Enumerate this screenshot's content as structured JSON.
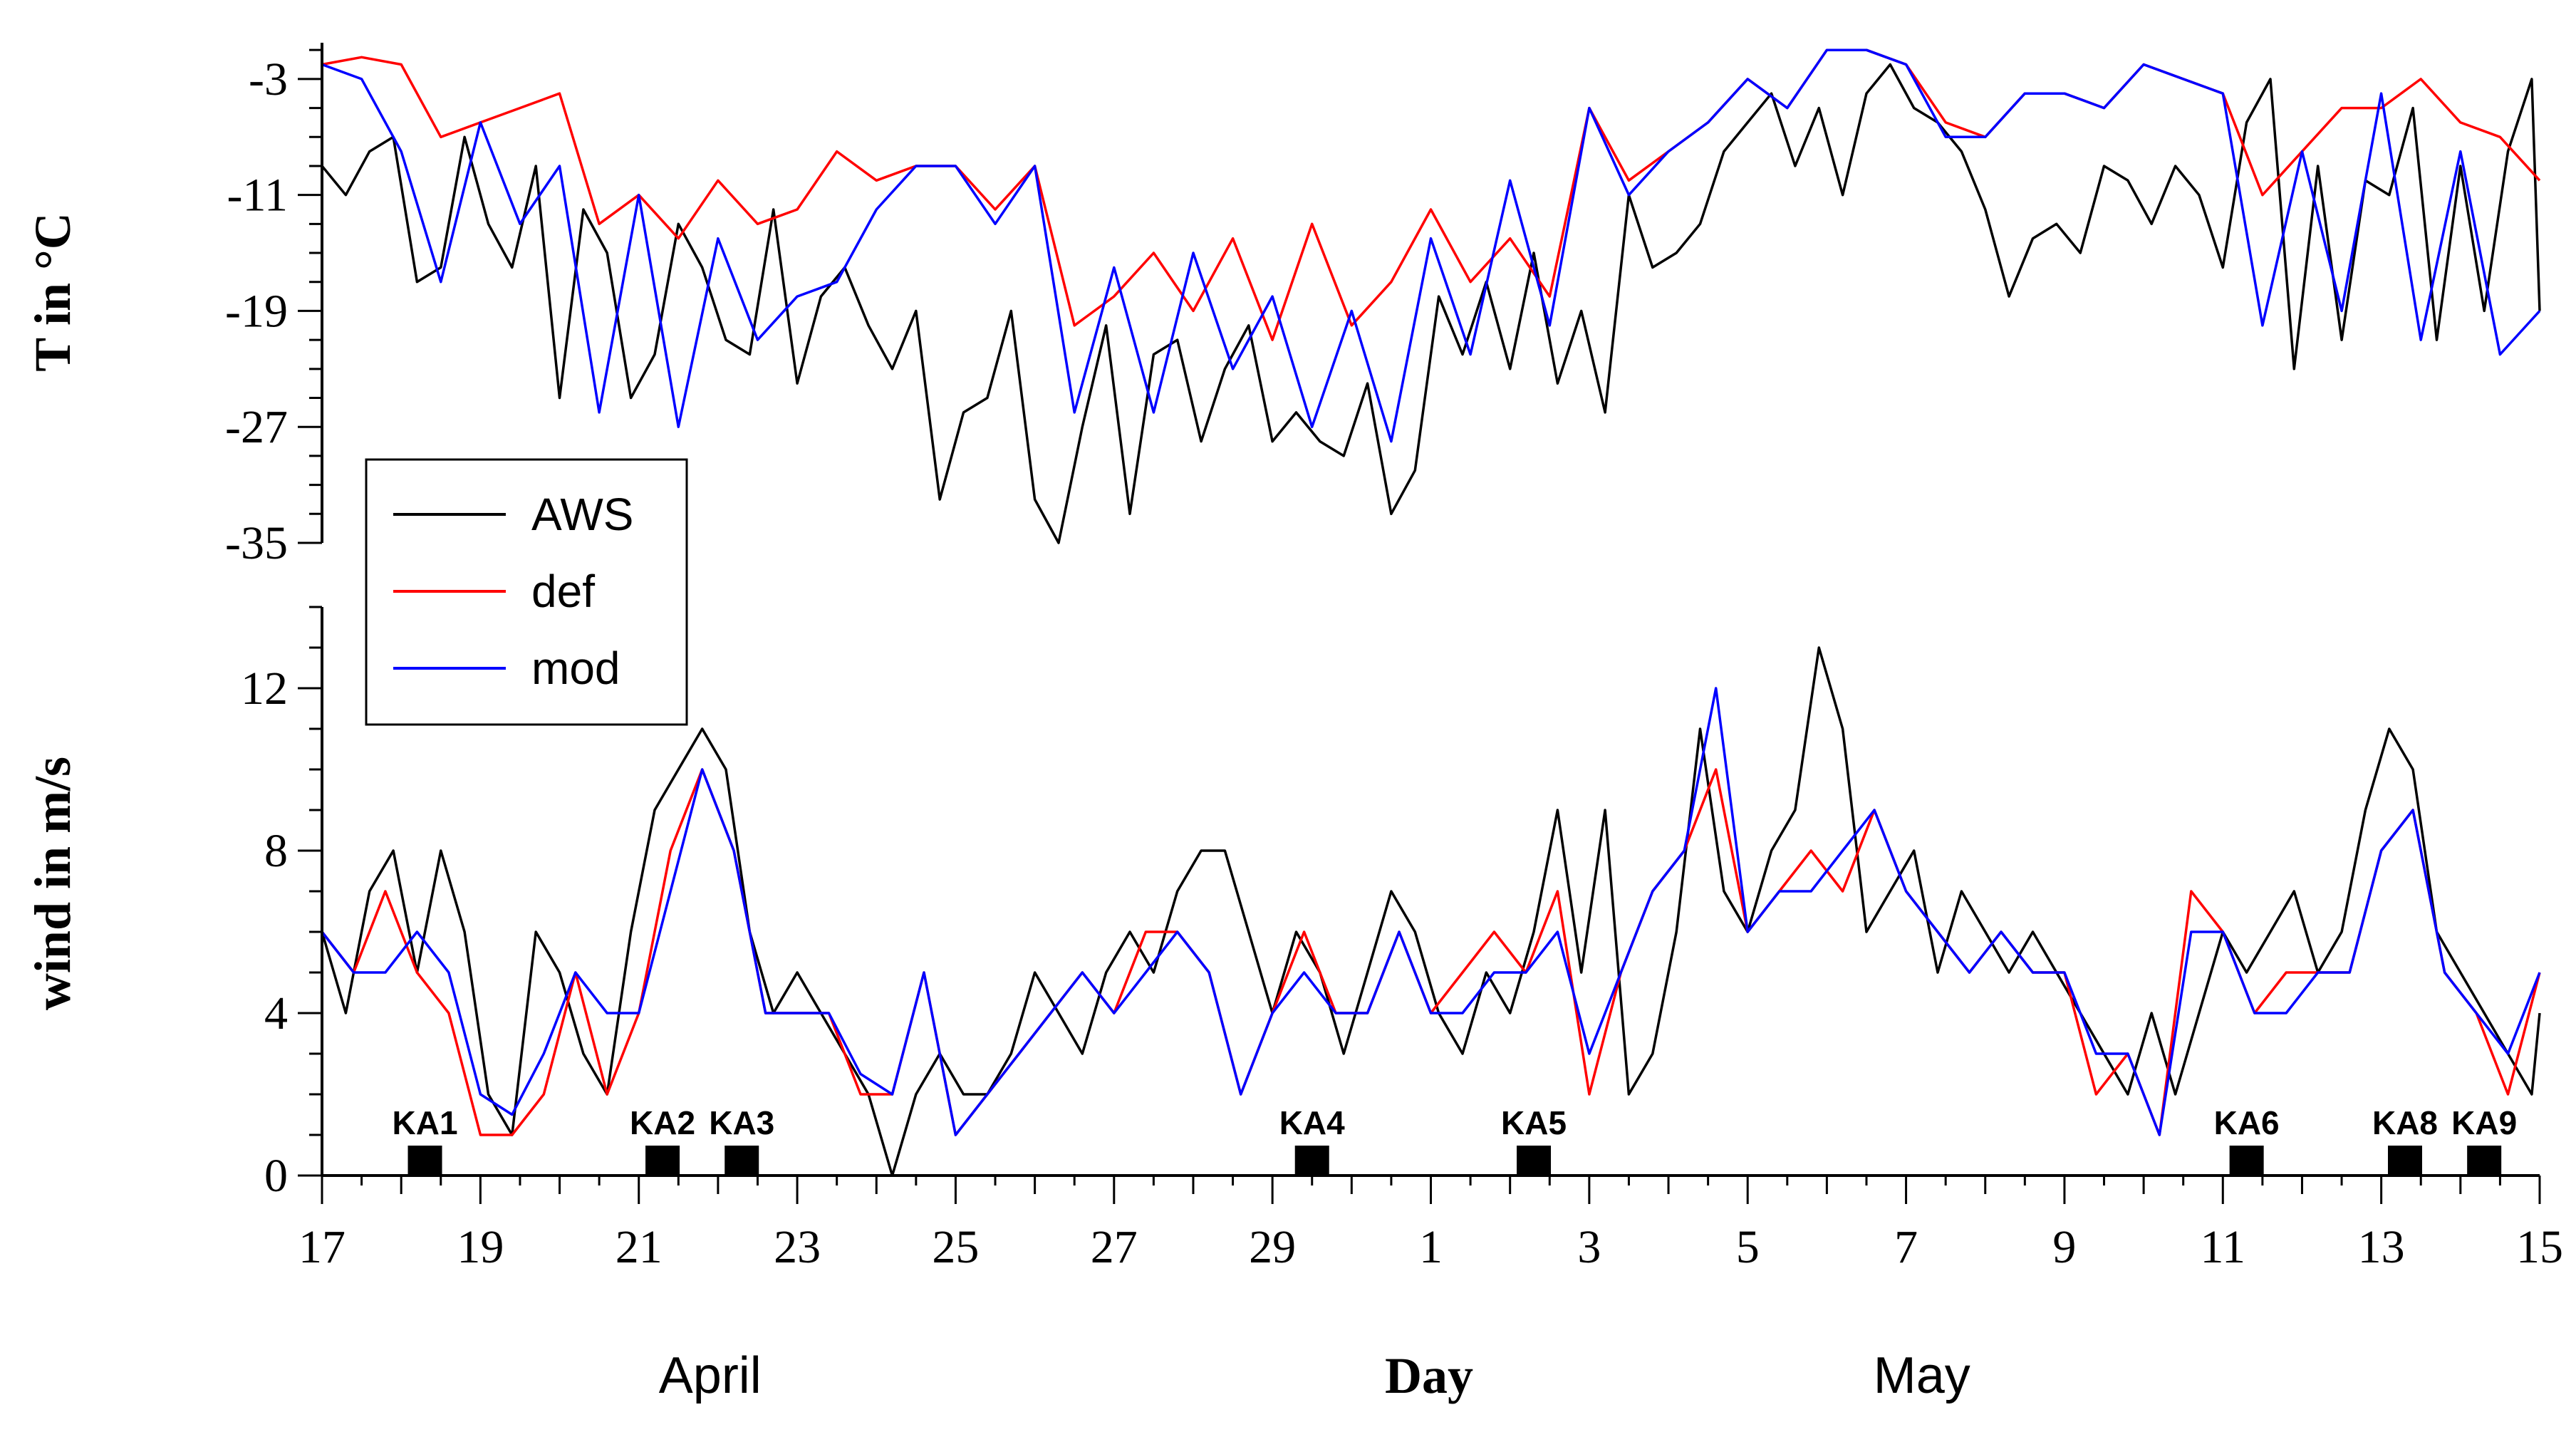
{
  "chart_data": {
    "type": "line",
    "xlabel": "Day",
    "x_unit": "days since 17 April",
    "xlim": [
      0,
      28
    ],
    "x_ticks": [
      {
        "x": 0,
        "label": "17"
      },
      {
        "x": 2,
        "label": "19"
      },
      {
        "x": 4,
        "label": "21"
      },
      {
        "x": 6,
        "label": "23"
      },
      {
        "x": 8,
        "label": "25"
      },
      {
        "x": 10,
        "label": "27"
      },
      {
        "x": 12,
        "label": "29"
      },
      {
        "x": 14,
        "label": "1"
      },
      {
        "x": 16,
        "label": "3"
      },
      {
        "x": 18,
        "label": "5"
      },
      {
        "x": 20,
        "label": "7"
      },
      {
        "x": 22,
        "label": "9"
      },
      {
        "x": 24,
        "label": "11"
      },
      {
        "x": 26,
        "label": "13"
      },
      {
        "x": 28,
        "label": "15"
      }
    ],
    "months": [
      {
        "label": "April",
        "x": 4.9
      },
      {
        "label": "May",
        "x": 20.2
      }
    ],
    "legend": [
      "AWS",
      "def",
      "mod"
    ],
    "colors": {
      "AWS": "#000000",
      "def": "#ff0000",
      "mod": "#0000ff"
    },
    "panels": [
      {
        "name": "temperature",
        "ylabel": "T  in °C",
        "ylim": [
          -35,
          -0.5
        ],
        "yticks": [
          -35,
          -27,
          -19,
          -11,
          -3
        ],
        "series": [
          {
            "name": "AWS",
            "x": [
              0,
              0.3,
              0.6,
              0.9,
              1.2,
              1.5,
              1.8,
              2.1,
              2.4,
              2.7,
              3.0,
              3.3,
              3.6,
              3.9,
              4.2,
              4.5,
              4.8,
              5.1,
              5.4,
              5.7,
              6.0,
              6.3,
              6.6,
              6.9,
              7.2,
              7.5,
              7.8,
              8.1,
              8.4,
              8.7,
              9.0,
              9.3,
              9.6,
              9.9,
              10.2,
              10.5,
              10.8,
              11.1,
              11.4,
              11.7,
              12.0,
              12.3,
              12.6,
              12.9,
              13.2,
              13.5,
              13.8,
              14.1,
              14.4,
              14.7,
              15.0,
              15.3,
              15.6,
              15.9,
              16.2,
              16.5,
              16.8,
              17.1,
              17.4,
              17.7,
              18.0,
              18.3,
              18.6,
              18.9,
              19.2,
              19.5,
              19.8,
              20.1,
              20.4,
              20.7,
              21.0,
              21.3,
              21.6,
              21.9,
              22.2,
              22.5,
              22.8,
              23.1,
              23.4,
              23.7,
              24.0,
              24.3,
              24.6,
              24.9,
              25.2,
              25.5,
              25.8,
              26.1,
              26.4,
              26.7,
              27.0,
              27.3,
              27.6,
              27.9,
              28.0
            ],
            "y": [
              -9,
              -11,
              -8,
              -7,
              -17,
              -16,
              -7,
              -13,
              -16,
              -9,
              -25,
              -12,
              -15,
              -25,
              -22,
              -13,
              -16,
              -21,
              -22,
              -12,
              -24,
              -18,
              -16,
              -20,
              -23,
              -19,
              -32,
              -26,
              -25,
              -19,
              -32,
              -35,
              -27,
              -20,
              -33,
              -22,
              -21,
              -28,
              -23,
              -20,
              -28,
              -26,
              -28,
              -29,
              -24,
              -33,
              -30,
              -18,
              -22,
              -17,
              -23,
              -15,
              -24,
              -19,
              -26,
              -11,
              -16,
              -15,
              -13,
              -8,
              -6,
              -4,
              -9,
              -5,
              -11,
              -4,
              -2,
              -5,
              -6,
              -8,
              -12,
              -18,
              -14,
              -13,
              -15,
              -9,
              -10,
              -13,
              -9,
              -11,
              -16,
              -6,
              -3,
              -23,
              -9,
              -21,
              -10,
              -11,
              -5,
              -21,
              -9,
              -19,
              -8,
              -3,
              -19
            ]
          },
          {
            "name": "def",
            "x": [
              0,
              0.5,
              1.0,
              1.5,
              2.0,
              2.5,
              3.0,
              3.5,
              4.0,
              4.5,
              5.0,
              5.5,
              6.0,
              6.5,
              7.0,
              7.5,
              8.0,
              8.5,
              9.0,
              9.5,
              10.0,
              10.5,
              11.0,
              11.5,
              12.0,
              12.5,
              13.0,
              13.5,
              14.0,
              14.5,
              15.0,
              15.5,
              16.0,
              16.5,
              17.0,
              17.5,
              18.0,
              18.5,
              19.0,
              19.5,
              20.0,
              20.5,
              21.0,
              21.5,
              22.0,
              22.5,
              23.0,
              23.5,
              24.0,
              24.5,
              25.0,
              25.5,
              26.0,
              26.5,
              27.0,
              27.5,
              28.0
            ],
            "y": [
              -2,
              -1.5,
              -2,
              -7,
              -6,
              -5,
              -4,
              -13,
              -11,
              -14,
              -10,
              -13,
              -12,
              -8,
              -10,
              -9,
              -9,
              -12,
              -9,
              -20,
              -18,
              -15,
              -19,
              -14,
              -21,
              -13,
              -20,
              -17,
              -12,
              -17,
              -14,
              -18,
              -5,
              -10,
              -8,
              -6,
              -3,
              -5,
              -1,
              -1,
              -2,
              -6,
              -7,
              -4,
              -4,
              -5,
              -2,
              -3,
              -4,
              -11,
              -8,
              -5,
              -5,
              -3,
              -6,
              -7,
              -10
            ]
          },
          {
            "name": "mod",
            "x": [
              0,
              0.5,
              1.0,
              1.5,
              2.0,
              2.5,
              3.0,
              3.5,
              4.0,
              4.5,
              5.0,
              5.5,
              6.0,
              6.5,
              7.0,
              7.5,
              8.0,
              8.5,
              9.0,
              9.5,
              10.0,
              10.5,
              11.0,
              11.5,
              12.0,
              12.5,
              13.0,
              13.5,
              14.0,
              14.5,
              15.0,
              15.5,
              16.0,
              16.5,
              17.0,
              17.5,
              18.0,
              18.5,
              19.0,
              19.5,
              20.0,
              20.5,
              21.0,
              21.5,
              22.0,
              22.5,
              23.0,
              23.5,
              24.0,
              24.5,
              25.0,
              25.5,
              26.0,
              26.5,
              27.0,
              27.5,
              28.0
            ],
            "y": [
              -2,
              -3,
              -8,
              -17,
              -6,
              -13,
              -9,
              -26,
              -11,
              -27,
              -14,
              -21,
              -18,
              -17,
              -12,
              -9,
              -9,
              -13,
              -9,
              -26,
              -16,
              -26,
              -15,
              -23,
              -18,
              -27,
              -19,
              -28,
              -14,
              -22,
              -10,
              -20,
              -5,
              -11,
              -8,
              -6,
              -3,
              -5,
              -1,
              -1,
              -2,
              -7,
              -7,
              -4,
              -4,
              -5,
              -2,
              -3,
              -4,
              -20,
              -8,
              -19,
              -4,
              -21,
              -8,
              -22,
              -19
            ]
          }
        ]
      },
      {
        "name": "wind",
        "ylabel": "wind in m/s",
        "ylim": [
          0,
          14
        ],
        "yticks": [
          0,
          4,
          8,
          12
        ],
        "series": [
          {
            "name": "AWS",
            "x": [
              0,
              0.3,
              0.6,
              0.9,
              1.2,
              1.5,
              1.8,
              2.1,
              2.4,
              2.7,
              3.0,
              3.3,
              3.6,
              3.9,
              4.2,
              4.5,
              4.8,
              5.1,
              5.4,
              5.7,
              6.0,
              6.3,
              6.6,
              6.9,
              7.2,
              7.5,
              7.8,
              8.1,
              8.4,
              8.7,
              9.0,
              9.3,
              9.6,
              9.9,
              10.2,
              10.5,
              10.8,
              11.1,
              11.4,
              11.7,
              12.0,
              12.3,
              12.6,
              12.9,
              13.2,
              13.5,
              13.8,
              14.1,
              14.4,
              14.7,
              15.0,
              15.3,
              15.6,
              15.9,
              16.2,
              16.5,
              16.8,
              17.1,
              17.4,
              17.7,
              18.0,
              18.3,
              18.6,
              18.9,
              19.2,
              19.5,
              19.8,
              20.1,
              20.4,
              20.7,
              21.0,
              21.3,
              21.6,
              21.9,
              22.2,
              22.5,
              22.8,
              23.1,
              23.4,
              23.7,
              24.0,
              24.3,
              24.6,
              24.9,
              25.2,
              25.5,
              25.8,
              26.1,
              26.4,
              26.7,
              27.0,
              27.3,
              27.6,
              27.9,
              28.0
            ],
            "y": [
              6,
              4,
              7,
              8,
              5,
              8,
              6,
              2,
              1,
              6,
              5,
              3,
              2,
              6,
              9,
              10,
              11,
              10,
              6,
              4,
              5,
              4,
              3,
              2,
              0,
              2,
              3,
              2,
              2,
              3,
              5,
              4,
              3,
              5,
              6,
              5,
              7,
              8,
              8,
              6,
              4,
              6,
              5,
              3,
              5,
              7,
              6,
              4,
              3,
              5,
              4,
              6,
              9,
              5,
              9,
              2,
              3,
              6,
              11,
              7,
              6,
              8,
              9,
              13,
              11,
              6,
              7,
              8,
              5,
              7,
              6,
              5,
              6,
              5,
              4,
              3,
              2,
              4,
              2,
              4,
              6,
              5,
              6,
              7,
              5,
              6,
              9,
              11,
              10,
              6,
              5,
              4,
              3,
              2,
              4
            ]
          },
          {
            "name": "def",
            "x": [
              0,
              0.4,
              0.8,
              1.2,
              1.6,
              2.0,
              2.4,
              2.8,
              3.2,
              3.6,
              4.0,
              4.4,
              4.8,
              5.2,
              5.6,
              6.0,
              6.4,
              6.8,
              7.2,
              7.6,
              8.0,
              8.4,
              8.8,
              9.2,
              9.6,
              10.0,
              10.4,
              10.8,
              11.2,
              11.6,
              12.0,
              12.4,
              12.8,
              13.2,
              13.6,
              14.0,
              14.4,
              14.8,
              15.2,
              15.6,
              16.0,
              16.4,
              16.8,
              17.2,
              17.6,
              18.0,
              18.4,
              18.8,
              19.2,
              19.6,
              20.0,
              20.4,
              20.8,
              21.2,
              21.6,
              22.0,
              22.4,
              22.8,
              23.2,
              23.6,
              24.0,
              24.4,
              24.8,
              25.2,
              25.6,
              26.0,
              26.4,
              26.8,
              27.2,
              27.6,
              28.0
            ],
            "y": [
              6,
              5,
              7,
              5,
              4,
              1,
              1,
              2,
              5,
              2,
              4,
              8,
              10,
              8,
              4,
              4,
              4,
              2,
              2,
              5,
              1,
              2,
              3,
              4,
              5,
              4,
              6,
              6,
              5,
              2,
              4,
              6,
              4,
              4,
              6,
              4,
              5,
              6,
              5,
              7,
              2,
              5,
              7,
              8,
              10,
              6,
              7,
              8,
              7,
              9,
              7,
              6,
              5,
              6,
              5,
              5,
              2,
              3,
              1,
              7,
              6,
              4,
              5,
              5,
              5,
              8,
              9,
              5,
              4,
              2,
              5
            ]
          },
          {
            "name": "mod",
            "x": [
              0,
              0.4,
              0.8,
              1.2,
              1.6,
              2.0,
              2.4,
              2.8,
              3.2,
              3.6,
              4.0,
              4.4,
              4.8,
              5.2,
              5.6,
              6.0,
              6.4,
              6.8,
              7.2,
              7.6,
              8.0,
              8.4,
              8.8,
              9.2,
              9.6,
              10.0,
              10.4,
              10.8,
              11.2,
              11.6,
              12.0,
              12.4,
              12.8,
              13.2,
              13.6,
              14.0,
              14.4,
              14.8,
              15.2,
              15.6,
              16.0,
              16.4,
              16.8,
              17.2,
              17.6,
              18.0,
              18.4,
              18.8,
              19.2,
              19.6,
              20.0,
              20.4,
              20.8,
              21.2,
              21.6,
              22.0,
              22.4,
              22.8,
              23.2,
              23.6,
              24.0,
              24.4,
              24.8,
              25.2,
              25.6,
              26.0,
              26.4,
              26.8,
              27.2,
              27.6,
              28.0
            ],
            "y": [
              6,
              5,
              5,
              6,
              5,
              2,
              1.5,
              3,
              5,
              4,
              4,
              7,
              10,
              8,
              4,
              4,
              4,
              2.5,
              2,
              5,
              1,
              2,
              3,
              4,
              5,
              4,
              5,
              6,
              5,
              2,
              4,
              5,
              4,
              4,
              6,
              4,
              4,
              5,
              5,
              6,
              3,
              5,
              7,
              8,
              12,
              6,
              7,
              7,
              8,
              9,
              7,
              6,
              5,
              6,
              5,
              5,
              3,
              3,
              1,
              6,
              6,
              4,
              4,
              5,
              5,
              8,
              9,
              5,
              4,
              3,
              5
            ]
          }
        ],
        "events": [
          {
            "label": "KA1",
            "x": 1.3
          },
          {
            "label": "KA2",
            "x": 4.3
          },
          {
            "label": "KA3",
            "x": 5.3
          },
          {
            "label": "KA4",
            "x": 12.5
          },
          {
            "label": "KA5",
            "x": 15.3
          },
          {
            "label": "KA6",
            "x": 24.3
          },
          {
            "label": "KA8",
            "x": 26.3
          },
          {
            "label": "KA9",
            "x": 27.3
          }
        ]
      }
    ]
  }
}
